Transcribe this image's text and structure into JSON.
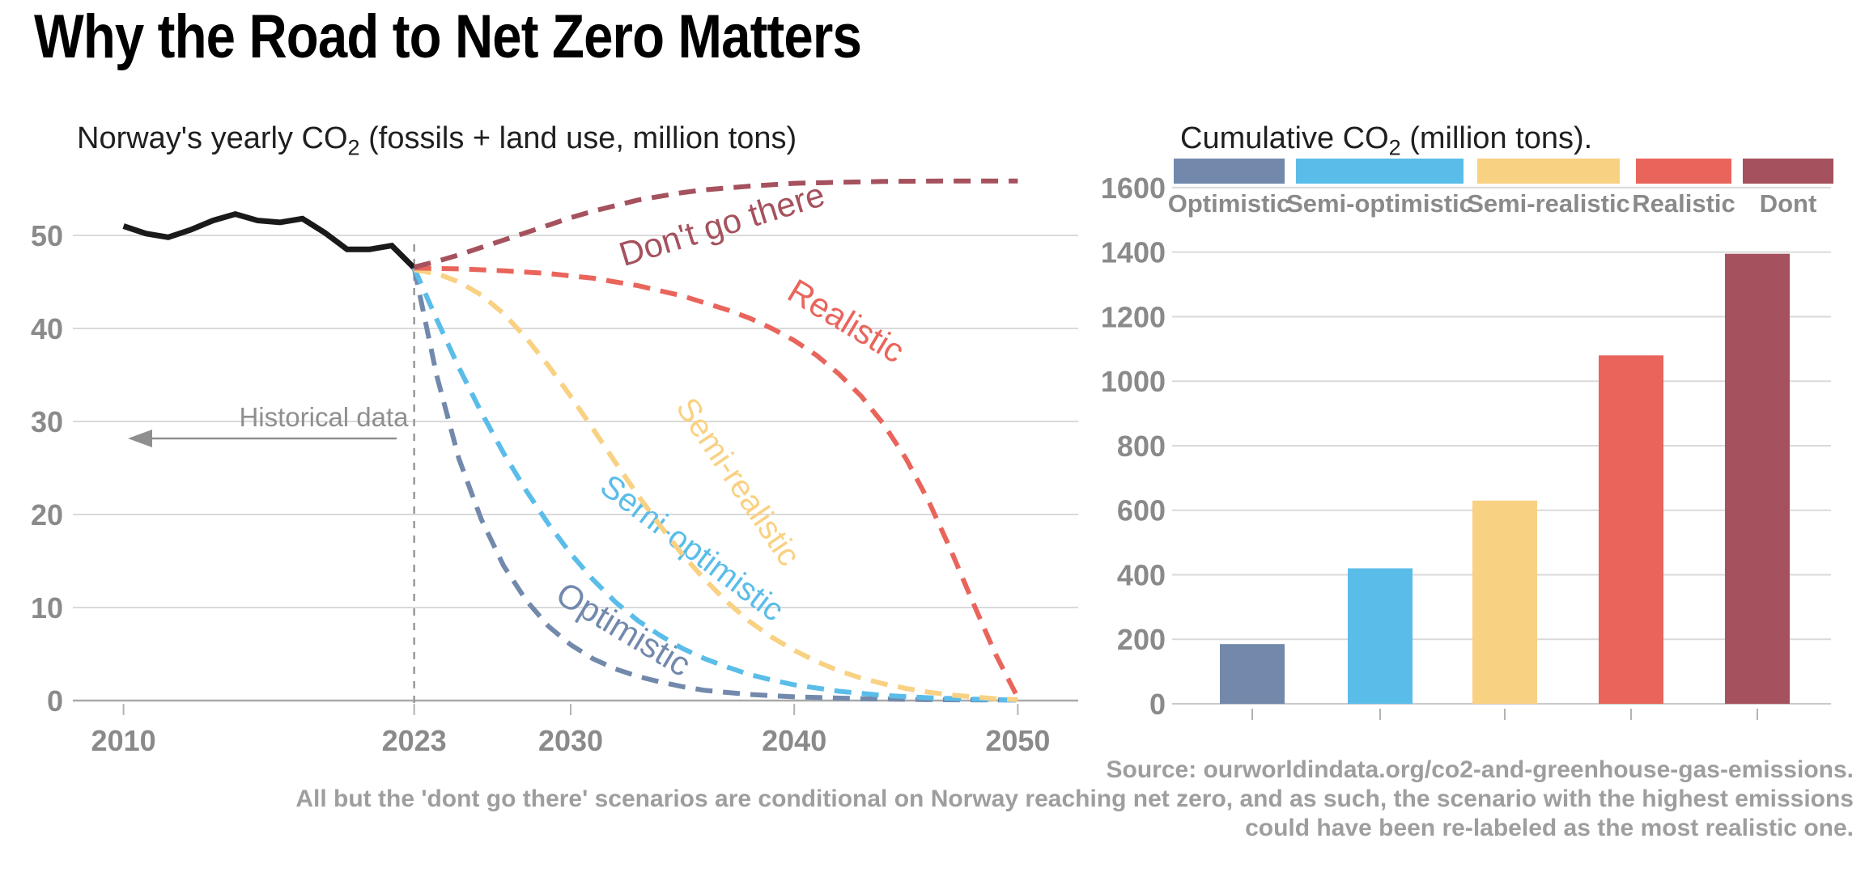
{
  "page": {
    "title": "Why the Road to Net Zero Matters"
  },
  "left_chart": {
    "title_pre": "Norway's yearly CO",
    "title_sub": "2",
    "title_post": " (fossils + land use, million tons)"
  },
  "right_chart": {
    "title_pre": "Cumulative CO",
    "title_sub": "2",
    "title_post": " (million tons)."
  },
  "footer": {
    "line1": "Source: ourworldindata.org/co2-and-greenhouse-gas-emissions.",
    "line2": "All but the 'dont go there' scenarios are conditional on Norway reaching net zero, and as such, the scenario with the highest emissions",
    "line3": "could have been re-labeled as the most realistic one."
  },
  "colors": {
    "optimistic": "#7289ac",
    "semi_optimistic": "#5abde9",
    "semi_realistic": "#f9d183",
    "realistic": "#e9655c",
    "dont": "#a5525e",
    "historical": "#1a1a1a",
    "grid": "#dadada",
    "axis_text": "#8a8a8a"
  },
  "chart_data": [
    {
      "type": "line",
      "title": "Norway's yearly CO2 (fossils + land use, million tons)",
      "x_ticks": [
        2010,
        2023,
        2030,
        2040,
        2050
      ],
      "y_ticks": [
        0,
        10,
        20,
        30,
        40,
        50
      ],
      "xlim": [
        2008.5,
        2052.5
      ],
      "ylim": [
        0,
        56
      ],
      "grid": true,
      "annotations": {
        "historical_label": "Historical data",
        "divider_year": 2023
      },
      "series": [
        {
          "name": "Historical",
          "style": "solid",
          "color": "#1a1a1a",
          "label": null,
          "points": [
            [
              2010,
              51.0
            ],
            [
              2011,
              50.2
            ],
            [
              2012,
              49.8
            ],
            [
              2013,
              50.6
            ],
            [
              2014,
              51.6
            ],
            [
              2015,
              52.3
            ],
            [
              2016,
              51.6
            ],
            [
              2017,
              51.4
            ],
            [
              2018,
              51.8
            ],
            [
              2019,
              50.3
            ],
            [
              2020,
              48.5
            ],
            [
              2021,
              48.5
            ],
            [
              2022,
              48.9
            ],
            [
              2023,
              46.5
            ]
          ]
        },
        {
          "name": "Optimistic",
          "style": "dashed",
          "color": "#7289ac",
          "label": "Optimistic",
          "points": [
            [
              2023,
              46.5
            ],
            [
              2024,
              35
            ],
            [
              2025,
              26
            ],
            [
              2026,
              19.5
            ],
            [
              2027,
              14.5
            ],
            [
              2028,
              10.8
            ],
            [
              2029,
              8
            ],
            [
              2030,
              6
            ],
            [
              2031,
              4.5
            ],
            [
              2032,
              3.4
            ],
            [
              2033,
              2.6
            ],
            [
              2034,
              2
            ],
            [
              2035,
              1.5
            ],
            [
              2036,
              1.1
            ],
            [
              2038,
              0.65
            ],
            [
              2040,
              0.4
            ],
            [
              2043,
              0.2
            ],
            [
              2046,
              0.1
            ],
            [
              2050,
              0.05
            ]
          ]
        },
        {
          "name": "Semi-optimistic",
          "style": "dashed",
          "color": "#5abde9",
          "label": "Semi-optimistic",
          "points": [
            [
              2023,
              46.5
            ],
            [
              2024,
              41
            ],
            [
              2025,
              35.8
            ],
            [
              2026,
              31
            ],
            [
              2027,
              26.6
            ],
            [
              2028,
              22.6
            ],
            [
              2029,
              19
            ],
            [
              2030,
              15.8
            ],
            [
              2031,
              13
            ],
            [
              2032,
              10.6
            ],
            [
              2033,
              8.6
            ],
            [
              2034,
              7
            ],
            [
              2035,
              5.6
            ],
            [
              2036,
              4.5
            ],
            [
              2037,
              3.6
            ],
            [
              2038,
              2.8
            ],
            [
              2039,
              2.2
            ],
            [
              2040,
              1.7
            ],
            [
              2042,
              1.0
            ],
            [
              2044,
              0.55
            ],
            [
              2046,
              0.3
            ],
            [
              2048,
              0.15
            ],
            [
              2050,
              0.05
            ]
          ]
        },
        {
          "name": "Semi-realistic",
          "style": "dashed",
          "color": "#f9d183",
          "label": "Semi-realistic",
          "points": [
            [
              2023,
              46.3
            ],
            [
              2024,
              45.9
            ],
            [
              2025,
              45
            ],
            [
              2026,
              43.6
            ],
            [
              2027,
              41.6
            ],
            [
              2028,
              39
            ],
            [
              2029,
              36
            ],
            [
              2030,
              32.7
            ],
            [
              2031,
              29.2
            ],
            [
              2032,
              25.6
            ],
            [
              2033,
              22.1
            ],
            [
              2034,
              18.8
            ],
            [
              2035,
              15.7
            ],
            [
              2036,
              13
            ],
            [
              2037,
              10.6
            ],
            [
              2038,
              8.5
            ],
            [
              2039,
              6.8
            ],
            [
              2040,
              5.4
            ],
            [
              2041,
              4.2
            ],
            [
              2042,
              3.2
            ],
            [
              2043,
              2.4
            ],
            [
              2044,
              1.8
            ],
            [
              2045,
              1.3
            ],
            [
              2046,
              0.9
            ],
            [
              2047,
              0.6
            ],
            [
              2048,
              0.4
            ],
            [
              2049,
              0.2
            ],
            [
              2050,
              0.1
            ]
          ]
        },
        {
          "name": "Realistic",
          "style": "dashed",
          "color": "#e9655c",
          "label": "Realistic",
          "points": [
            [
              2023,
              46.5
            ],
            [
              2025,
              46.4
            ],
            [
              2027,
              46.2
            ],
            [
              2029,
              45.9
            ],
            [
              2031,
              45.4
            ],
            [
              2033,
              44.6
            ],
            [
              2035,
              43.5
            ],
            [
              2037,
              42
            ],
            [
              2038,
              41.1
            ],
            [
              2039,
              40
            ],
            [
              2040,
              38.7
            ],
            [
              2041,
              37.1
            ],
            [
              2042,
              35.1
            ],
            [
              2043,
              32.7
            ],
            [
              2044,
              29.7
            ],
            [
              2045,
              26
            ],
            [
              2046,
              21.5
            ],
            [
              2047,
              16.2
            ],
            [
              2048,
              10.5
            ],
            [
              2049,
              5
            ],
            [
              2050,
              0.3
            ]
          ]
        },
        {
          "name": "Don't go there",
          "style": "dashed",
          "color": "#a5525e",
          "label": "Don't go there",
          "points": [
            [
              2023,
              46.6
            ],
            [
              2024,
              47.2
            ],
            [
              2025,
              47.9
            ],
            [
              2026,
              48.7
            ],
            [
              2027,
              49.5
            ],
            [
              2028,
              50.3
            ],
            [
              2029,
              51.1
            ],
            [
              2030,
              51.9
            ],
            [
              2031,
              52.6
            ],
            [
              2032,
              53.2
            ],
            [
              2033,
              53.8
            ],
            [
              2034,
              54.2
            ],
            [
              2035,
              54.6
            ],
            [
              2036,
              54.9
            ],
            [
              2037,
              55.1
            ],
            [
              2038,
              55.3
            ],
            [
              2040,
              55.6
            ],
            [
              2042,
              55.7
            ],
            [
              2044,
              55.8
            ],
            [
              2047,
              55.85
            ],
            [
              2050,
              55.85
            ]
          ]
        }
      ]
    },
    {
      "type": "bar",
      "title": "Cumulative CO2 (million tons).",
      "categories": [
        "Optimistic",
        "Semi-optimistic",
        "Semi-realistic",
        "Realistic",
        "Dont"
      ],
      "values": [
        185,
        420,
        630,
        1080,
        1395
      ],
      "colors": [
        "#7289ac",
        "#5abde9",
        "#f9d183",
        "#e9655c",
        "#a5525e"
      ],
      "y_ticks": [
        0,
        200,
        400,
        600,
        800,
        1000,
        1200,
        1400,
        1600
      ],
      "ylim": [
        0,
        1700
      ],
      "grid": true,
      "legend_position": "top"
    }
  ]
}
